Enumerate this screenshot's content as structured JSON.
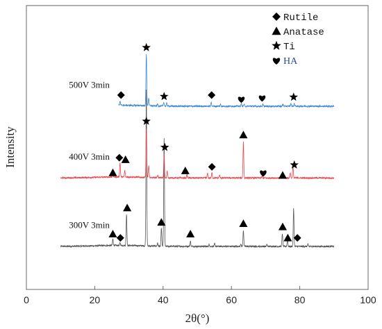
{
  "chart_data": {
    "type": "line",
    "title": "",
    "xlabel": "2θ(°)",
    "ylabel": "Intensity",
    "xlim": [
      0,
      100
    ],
    "xticks": [
      0,
      20,
      40,
      60,
      80,
      100
    ],
    "grid": false,
    "legend_position": "top-right",
    "legend": [
      {
        "label": "Rutile",
        "symbol": "diamond"
      },
      {
        "label": "Anatase",
        "symbol": "triangle"
      },
      {
        "label": "Ti",
        "symbol": "star"
      },
      {
        "label": "HA",
        "symbol": "heart"
      }
    ],
    "series": [
      {
        "name": "300V 3min",
        "color": "#555555",
        "baseline": 0,
        "x_range": [
          10,
          90
        ],
        "peaks": [
          {
            "x": 25.3,
            "y": 10
          },
          {
            "x": 27.4,
            "y": 4
          },
          {
            "x": 29.3,
            "y": 48
          },
          {
            "x": 35.1,
            "y": 240
          },
          {
            "x": 38.4,
            "y": 5
          },
          {
            "x": 39.5,
            "y": 28
          },
          {
            "x": 40.3,
            "y": 165
          },
          {
            "x": 48.0,
            "y": 8
          },
          {
            "x": 53.5,
            "y": 3
          },
          {
            "x": 55.1,
            "y": 4
          },
          {
            "x": 62.7,
            "y": 4
          },
          {
            "x": 63.5,
            "y": 25
          },
          {
            "x": 70.4,
            "y": 3
          },
          {
            "x": 74.9,
            "y": 20
          },
          {
            "x": 76.4,
            "y": 10
          },
          {
            "x": 78.2,
            "y": 58
          },
          {
            "x": 82.4,
            "y": 3
          }
        ]
      },
      {
        "name": "400V 3min",
        "color": "#e8484c",
        "baseline": 105,
        "x_range": [
          10,
          90
        ],
        "peaks": [
          {
            "x": 25.3,
            "y": 4
          },
          {
            "x": 27.4,
            "y": 22
          },
          {
            "x": 28.8,
            "y": 10
          },
          {
            "x": 35.1,
            "y": 75
          },
          {
            "x": 35.8,
            "y": 18
          },
          {
            "x": 38.4,
            "y": 4
          },
          {
            "x": 40.3,
            "y": 36
          },
          {
            "x": 41.2,
            "y": 10
          },
          {
            "x": 47.0,
            "y": 5
          },
          {
            "x": 53.0,
            "y": 7
          },
          {
            "x": 54.3,
            "y": 8
          },
          {
            "x": 56.5,
            "y": 4
          },
          {
            "x": 63.5,
            "y": 55
          },
          {
            "x": 69.0,
            "y": 3
          },
          {
            "x": 75.0,
            "y": 3
          },
          {
            "x": 77.2,
            "y": 8
          },
          {
            "x": 78.0,
            "y": 18
          }
        ]
      },
      {
        "name": "500V 3min",
        "color": "#3a88d4",
        "baseline": 215,
        "x_range": [
          27,
          90
        ],
        "peaks": [
          {
            "x": 27.4,
            "y": 6
          },
          {
            "x": 35.1,
            "y": 80
          },
          {
            "x": 35.8,
            "y": 12
          },
          {
            "x": 38.4,
            "y": 3
          },
          {
            "x": 40.2,
            "y": 6
          },
          {
            "x": 41.1,
            "y": 5
          },
          {
            "x": 54.1,
            "y": 6
          },
          {
            "x": 56.8,
            "y": 3
          },
          {
            "x": 62.9,
            "y": 4
          },
          {
            "x": 63.7,
            "y": 3
          },
          {
            "x": 69.2,
            "y": 3
          },
          {
            "x": 75.1,
            "y": 3
          },
          {
            "x": 77.4,
            "y": 4
          },
          {
            "x": 78.4,
            "y": 4
          }
        ]
      }
    ],
    "markers": [
      {
        "series": "300V 3min",
        "x": 25.3,
        "y": 19,
        "symbol": "triangle"
      },
      {
        "series": "300V 3min",
        "x": 27.5,
        "y": 13,
        "symbol": "diamond"
      },
      {
        "series": "300V 3min",
        "x": 29.5,
        "y": 59,
        "symbol": "triangle"
      },
      {
        "series": "300V 3min",
        "x": 39.5,
        "y": 37,
        "symbol": "triangle"
      },
      {
        "series": "300V 3min",
        "x": 48.0,
        "y": 19,
        "symbol": "triangle"
      },
      {
        "series": "300V 3min",
        "x": 63.5,
        "y": 35,
        "symbol": "triangle"
      },
      {
        "series": "300V 3min",
        "x": 75.0,
        "y": 30,
        "symbol": "triangle"
      },
      {
        "series": "300V 3min",
        "x": 76.5,
        "y": 13,
        "symbol": "triangle"
      },
      {
        "series": "300V 3min",
        "x": 79.3,
        "y": 13,
        "symbol": "diamond"
      },
      {
        "series": "400V 3min",
        "x": 25.3,
        "y": 113,
        "symbol": "triangle"
      },
      {
        "series": "400V 3min",
        "x": 27.2,
        "y": 136,
        "symbol": "diamond"
      },
      {
        "series": "400V 3min",
        "x": 29.0,
        "y": 133,
        "symbol": "triangle"
      },
      {
        "series": "400V 3min",
        "x": 35.1,
        "y": 192,
        "symbol": "star"
      },
      {
        "series": "400V 3min",
        "x": 40.5,
        "y": 152,
        "symbol": "star"
      },
      {
        "series": "400V 3min",
        "x": 46.5,
        "y": 116,
        "symbol": "triangle"
      },
      {
        "series": "400V 3min",
        "x": 54.3,
        "y": 122,
        "symbol": "diamond"
      },
      {
        "series": "400V 3min",
        "x": 63.5,
        "y": 171,
        "symbol": "triangle"
      },
      {
        "series": "400V 3min",
        "x": 69.3,
        "y": 113,
        "symbol": "heart"
      },
      {
        "series": "400V 3min",
        "x": 75.0,
        "y": 109,
        "symbol": "triangle"
      },
      {
        "series": "400V 3min",
        "x": 78.4,
        "y": 125,
        "symbol": "star"
      },
      {
        "series": "500V 3min",
        "x": 35.1,
        "y": 305,
        "symbol": "star"
      },
      {
        "series": "500V 3min",
        "x": 27.7,
        "y": 232,
        "symbol": "diamond"
      },
      {
        "series": "500V 3min",
        "x": 40.3,
        "y": 230,
        "symbol": "star"
      },
      {
        "series": "500V 3min",
        "x": 54.2,
        "y": 232,
        "symbol": "diamond"
      },
      {
        "series": "500V 3min",
        "x": 62.9,
        "y": 226,
        "symbol": "heart"
      },
      {
        "series": "500V 3min",
        "x": 69.0,
        "y": 228,
        "symbol": "heart"
      },
      {
        "series": "500V 3min",
        "x": 78.2,
        "y": 229,
        "symbol": "star"
      }
    ]
  }
}
